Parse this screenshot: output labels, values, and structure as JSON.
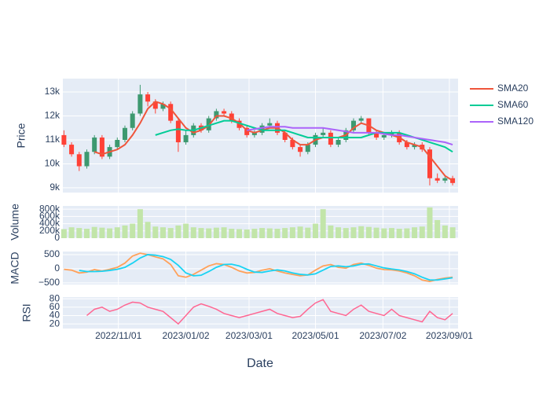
{
  "chart_data": {
    "type": "candlestick",
    "x_label": "Date",
    "x": [
      "2022-09-12",
      "2022-09-19",
      "2022-09-26",
      "2022-10-03",
      "2022-10-10",
      "2022-10-17",
      "2022-10-24",
      "2022-10-31",
      "2022-11-07",
      "2022-11-14",
      "2022-11-21",
      "2022-11-28",
      "2022-12-05",
      "2022-12-12",
      "2022-12-19",
      "2022-12-26",
      "2023-01-02",
      "2023-01-09",
      "2023-01-16",
      "2023-01-23",
      "2023-01-30",
      "2023-02-06",
      "2023-02-13",
      "2023-02-20",
      "2023-02-27",
      "2023-03-06",
      "2023-03-13",
      "2023-03-20",
      "2023-03-27",
      "2023-04-03",
      "2023-04-10",
      "2023-04-17",
      "2023-04-24",
      "2023-05-01",
      "2023-05-08",
      "2023-05-15",
      "2023-05-22",
      "2023-05-29",
      "2023-06-05",
      "2023-06-12",
      "2023-06-19",
      "2023-06-26",
      "2023-07-03",
      "2023-07-10",
      "2023-07-17",
      "2023-07-24",
      "2023-07-31",
      "2023-08-07",
      "2023-08-14",
      "2023-08-21",
      "2023-08-28",
      "2023-09-04"
    ],
    "xlim": [
      "2022-09-11",
      "2023-09-09"
    ],
    "xticks": [
      {
        "value": "2022-11-01",
        "label": "2022/11/01"
      },
      {
        "value": "2023-01-02",
        "label": "2023/01/02"
      },
      {
        "value": "2023-03-01",
        "label": "2023/03/01"
      },
      {
        "value": "2023-05-01",
        "label": "2023/05/01"
      },
      {
        "value": "2023-07-02",
        "label": "2023/07/02"
      },
      {
        "value": "2023-09-01",
        "label": "2023/09/01"
      }
    ],
    "grid": true,
    "legend_position": "right",
    "increasing_color": "#3d9970",
    "decreasing_color": "#ff4136",
    "price": {
      "ylabel": "Price",
      "ylim": [
        8800,
        13560
      ],
      "yticks": [
        {
          "value": 9000,
          "label": "9k"
        },
        {
          "value": 10000,
          "label": "10k"
        },
        {
          "value": 11000,
          "label": "11k"
        },
        {
          "value": 12000,
          "label": "12k"
        },
        {
          "value": 13000,
          "label": "13k"
        }
      ],
      "open": [
        11200,
        10800,
        10400,
        9900,
        10500,
        11100,
        10300,
        10700,
        11000,
        11500,
        12100,
        12900,
        12600,
        12300,
        12500,
        11800,
        10900,
        11200,
        11600,
        11400,
        11900,
        12200,
        12100,
        11800,
        11500,
        11200,
        11300,
        11600,
        11700,
        11300,
        11000,
        10700,
        10500,
        10800,
        11200,
        11300,
        10800,
        11000,
        11400,
        11800,
        11900,
        11300,
        11100,
        11200,
        11300,
        10900,
        10700,
        10800,
        10600,
        9400,
        9300,
        9400
      ],
      "high": [
        11400,
        10900,
        10500,
        10600,
        11200,
        11200,
        10800,
        11100,
        11600,
        12200,
        13300,
        13000,
        12700,
        12600,
        12600,
        11900,
        11400,
        11700,
        11700,
        12000,
        12300,
        12300,
        12200,
        11900,
        11600,
        11400,
        11700,
        11900,
        11800,
        11400,
        11100,
        10800,
        10900,
        11300,
        11500,
        11400,
        11100,
        11500,
        11900,
        12000,
        11900,
        11400,
        11300,
        11400,
        11400,
        11000,
        10900,
        10900,
        10700,
        9600,
        9500,
        9500
      ],
      "low": [
        10700,
        10300,
        9700,
        9800,
        10400,
        10200,
        10200,
        10600,
        10900,
        11400,
        12000,
        12400,
        12100,
        12200,
        11700,
        10500,
        10800,
        11100,
        11300,
        11300,
        11800,
        12000,
        11700,
        11400,
        11100,
        11100,
        11200,
        11500,
        11200,
        10900,
        10600,
        10300,
        10400,
        10700,
        11100,
        10700,
        10700,
        10900,
        11300,
        11700,
        11200,
        11000,
        11000,
        11100,
        10800,
        10600,
        10600,
        10500,
        9100,
        9200,
        9200,
        9100
      ],
      "close": [
        10800,
        10400,
        9900,
        10500,
        11100,
        10300,
        10700,
        11000,
        11500,
        12100,
        12900,
        12600,
        12300,
        12500,
        11800,
        10900,
        11200,
        11600,
        11400,
        11900,
        12200,
        12100,
        11800,
        11500,
        11200,
        11300,
        11600,
        11700,
        11300,
        11000,
        10700,
        10500,
        10800,
        11200,
        11300,
        10800,
        11000,
        11400,
        11800,
        11900,
        11300,
        11100,
        11200,
        11300,
        10900,
        10700,
        10800,
        10600,
        9400,
        9300,
        9400,
        9200
      ],
      "series": [
        {
          "name": "SMA20",
          "color": "#ef553b",
          "values": [
            null,
            null,
            null,
            null,
            10500,
            10400,
            10500,
            10600,
            10800,
            11200,
            11700,
            12300,
            12600,
            12500,
            12300,
            11900,
            11500,
            11300,
            11400,
            11600,
            12000,
            12000,
            11900,
            11700,
            11400,
            11300,
            11400,
            11500,
            11500,
            11300,
            11000,
            10800,
            10800,
            11000,
            11100,
            11100,
            11100,
            11200,
            11500,
            11700,
            11600,
            11400,
            11300,
            11200,
            11100,
            10900,
            10800,
            10700,
            10300,
            9900,
            9500,
            9300
          ]
        },
        {
          "name": "SMA60",
          "color": "#00cc96",
          "values": [
            null,
            null,
            null,
            null,
            null,
            null,
            null,
            null,
            null,
            null,
            null,
            null,
            11200,
            11300,
            11400,
            11450,
            11400,
            11400,
            11500,
            11600,
            11700,
            11800,
            11800,
            11700,
            11600,
            11500,
            11400,
            11400,
            11400,
            11400,
            11300,
            11200,
            11100,
            11100,
            11100,
            11100,
            11100,
            11100,
            11100,
            11100,
            11200,
            11300,
            11300,
            11300,
            11300,
            11200,
            11100,
            11000,
            10900,
            10800,
            10700,
            10500
          ]
        },
        {
          "name": "SMA120",
          "color": "#ab63fa",
          "values": [
            null,
            null,
            null,
            null,
            null,
            null,
            null,
            null,
            null,
            null,
            null,
            null,
            null,
            null,
            null,
            null,
            null,
            null,
            null,
            null,
            null,
            null,
            null,
            null,
            11400,
            11450,
            11500,
            11550,
            11550,
            11550,
            11500,
            11500,
            11500,
            11500,
            11500,
            11450,
            11400,
            11350,
            11300,
            11300,
            11300,
            11300,
            11250,
            11200,
            11200,
            11150,
            11100,
            11050,
            11000,
            10950,
            10900,
            10800
          ]
        }
      ]
    },
    "volume": {
      "ylabel": "Volume",
      "color": "#c2e5a9",
      "ylim": [
        0,
        890000
      ],
      "yticks": [
        0,
        {
          "value": 200000,
          "label": "200k"
        },
        {
          "value": 400000,
          "label": "400k"
        },
        {
          "value": 600000,
          "label": "600k"
        },
        {
          "value": 800000,
          "label": "800k"
        }
      ],
      "values": [
        250000,
        300000,
        280000,
        260000,
        310000,
        290000,
        270000,
        300000,
        350000,
        400000,
        800000,
        450000,
        320000,
        300000,
        280000,
        350000,
        400000,
        300000,
        280000,
        270000,
        290000,
        300000,
        260000,
        250000,
        240000,
        260000,
        280000,
        270000,
        260000,
        280000,
        300000,
        320000,
        290000,
        400000,
        800000,
        350000,
        300000,
        280000,
        300000,
        330000,
        310000,
        290000,
        270000,
        280000,
        260000,
        270000,
        300000,
        320000,
        850000,
        500000,
        350000,
        300000
      ]
    },
    "macd": {
      "ylabel": "MACD",
      "ylim": [
        -560,
        610
      ],
      "yticks": [
        {
          "value": -500,
          "label": "−500"
        },
        0,
        500
      ],
      "lines": [
        {
          "color": "#ffa15a",
          "values": [
            -20,
            -50,
            -150,
            -120,
            -30,
            -80,
            -20,
            50,
            200,
            450,
            550,
            500,
            420,
            350,
            150,
            -250,
            -300,
            -200,
            -50,
            100,
            180,
            150,
            50,
            -80,
            -150,
            -130,
            -50,
            0,
            -80,
            -150,
            -200,
            -250,
            -220,
            -50,
            100,
            150,
            50,
            20,
            150,
            200,
            120,
            20,
            -30,
            -40,
            -80,
            -150,
            -250,
            -400,
            -450,
            -380,
            -330,
            -300
          ]
        },
        {
          "color": "#19d3f3",
          "values": [
            null,
            null,
            -60,
            -100,
            -100,
            -90,
            -60,
            -20,
            50,
            200,
            380,
            500,
            480,
            430,
            330,
            120,
            -150,
            -250,
            -230,
            -100,
            50,
            150,
            160,
            100,
            -20,
            -120,
            -130,
            -80,
            -40,
            -80,
            -150,
            -200,
            -220,
            -180,
            -50,
            80,
            100,
            70,
            100,
            160,
            170,
            100,
            30,
            -10,
            -40,
            -100,
            -180,
            -300,
            -400,
            -400,
            -360,
            -320
          ]
        }
      ]
    },
    "rsi": {
      "ylabel": "RSI",
      "color": "#ff6692",
      "ylim": [
        9,
        84
      ],
      "yticks": [
        20,
        40,
        60,
        80
      ],
      "values": [
        null,
        null,
        null,
        40,
        55,
        60,
        50,
        55,
        65,
        72,
        70,
        60,
        55,
        50,
        35,
        20,
        40,
        60,
        68,
        62,
        55,
        45,
        40,
        35,
        40,
        45,
        50,
        55,
        45,
        40,
        35,
        38,
        55,
        70,
        78,
        50,
        45,
        40,
        55,
        65,
        50,
        45,
        40,
        55,
        40,
        35,
        30,
        25,
        50,
        35,
        30,
        45
      ]
    }
  }
}
